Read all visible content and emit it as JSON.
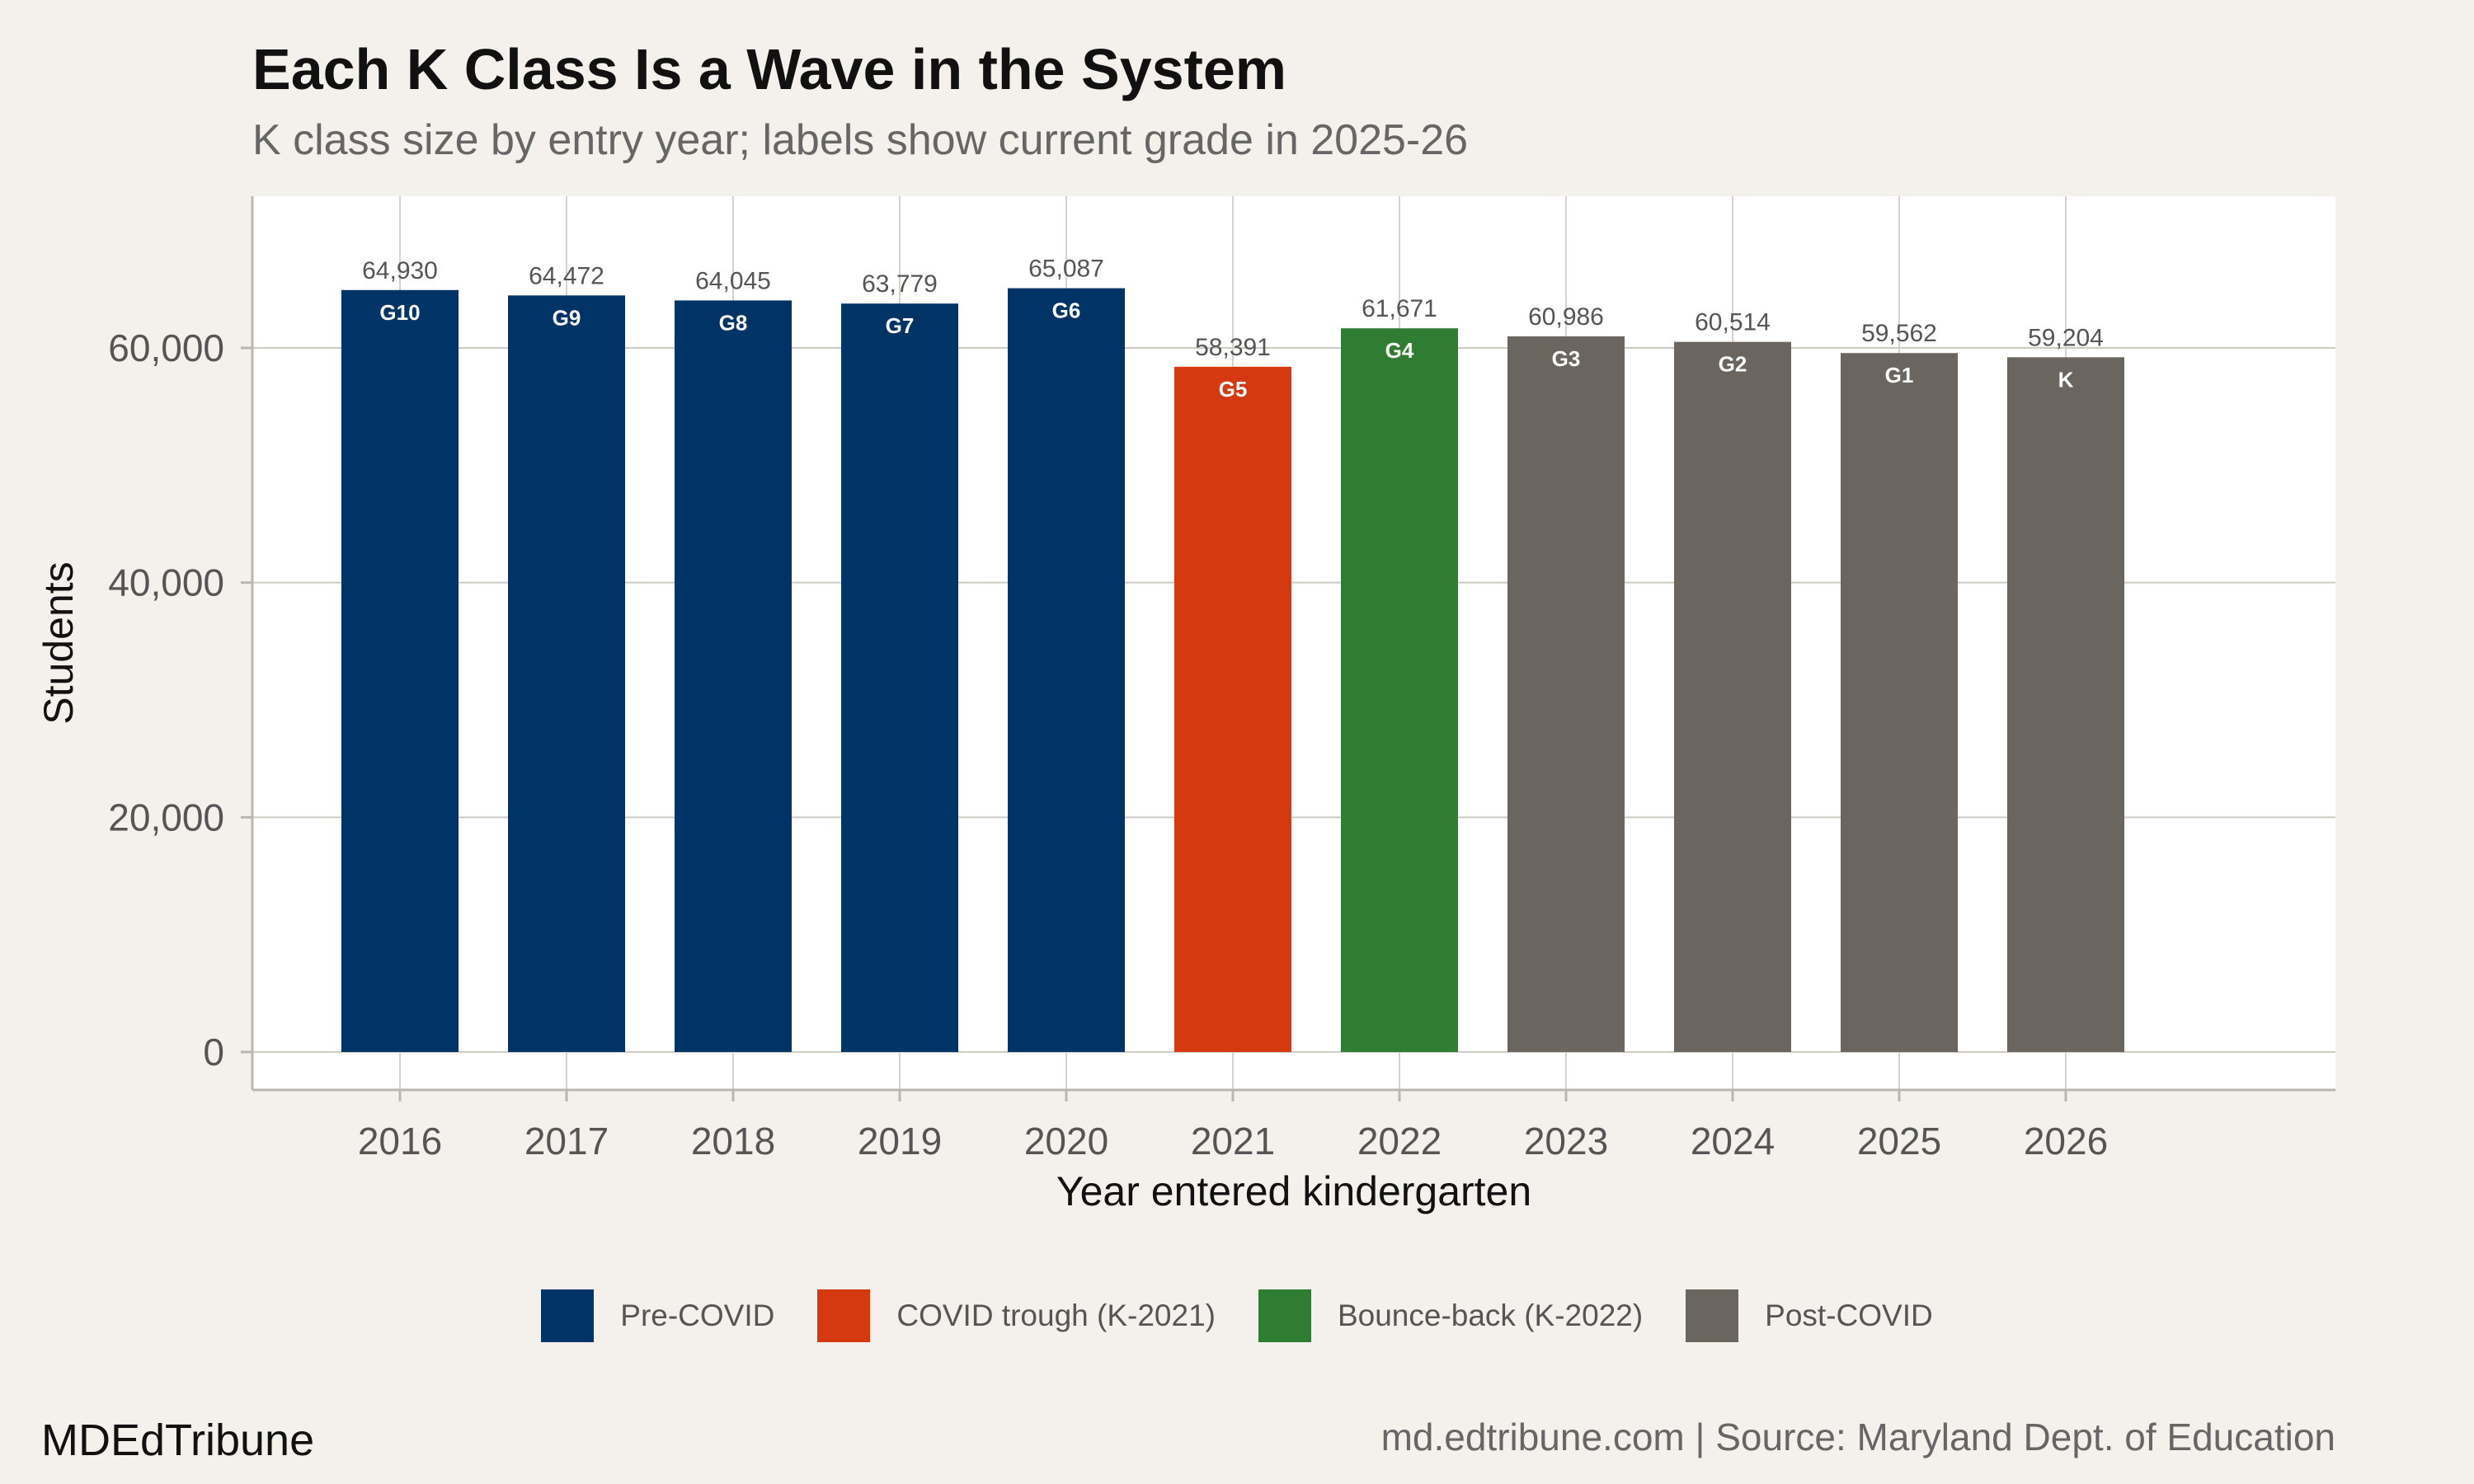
{
  "chart_data": {
    "type": "bar",
    "title": "Each K Class Is a Wave in the System",
    "subtitle": "K class size by entry year; labels show current grade in 2025-26",
    "xlabel": "Year entered kindergarten",
    "ylabel": "Students",
    "ylim": [
      0,
      70000
    ],
    "y_ticks": [
      0,
      20000,
      40000,
      60000
    ],
    "y_tick_labels": [
      "0",
      "20,000",
      "40,000",
      "60,000"
    ],
    "grid": true,
    "categories": [
      "2016",
      "2017",
      "2018",
      "2019",
      "2020",
      "2021",
      "2022",
      "2023",
      "2024",
      "2025",
      "2026"
    ],
    "values": [
      64930,
      64472,
      64045,
      63779,
      65087,
      58391,
      61671,
      60986,
      60514,
      59562,
      59204
    ],
    "value_labels": [
      "64,930",
      "64,472",
      "64,045",
      "63,779",
      "65,087",
      "58,391",
      "61,671",
      "60,986",
      "60,514",
      "59,562",
      "59,204"
    ],
    "grade_labels": [
      "G10",
      "G9",
      "G8",
      "G7",
      "G6",
      "G5",
      "G4",
      "G3",
      "G2",
      "G1",
      "K"
    ],
    "groups": [
      "pre",
      "pre",
      "pre",
      "pre",
      "pre",
      "trough",
      "bounce",
      "post",
      "post",
      "post",
      "post"
    ],
    "legend_position": "bottom",
    "legend": [
      {
        "key": "pre",
        "label": "Pre-COVID",
        "color": "#003366"
      },
      {
        "key": "trough",
        "label": "COVID trough (K-2021)",
        "color": "#d4390f"
      },
      {
        "key": "bounce",
        "label": "Bounce-back (K-2022)",
        "color": "#2e7d32"
      },
      {
        "key": "post",
        "label": "Post-COVID",
        "color": "#6a655f"
      }
    ]
  },
  "footer": {
    "brand": "MDEdTribune",
    "credit": "md.edtribune.com | Source: Maryland Dept. of Education"
  }
}
